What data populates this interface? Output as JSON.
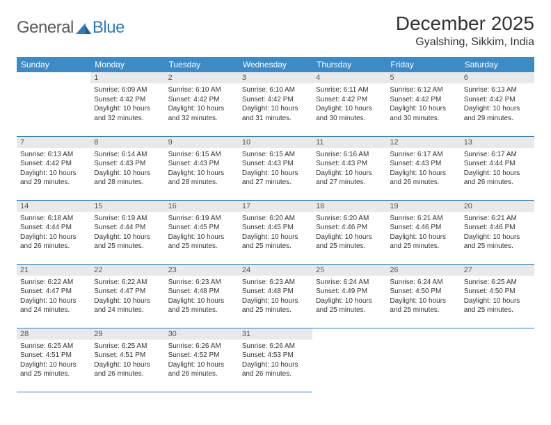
{
  "logo": {
    "word1": "General",
    "word2": "Blue"
  },
  "title": "December 2025",
  "location": "Gyalshing, Sikkim, India",
  "colors": {
    "header_bg": "#3b8bc8",
    "header_text": "#ffffff",
    "daynum_bg": "#e9e9e9",
    "border": "#2b7bbf",
    "logo_accent": "#2b7bbf",
    "body_text": "#333333"
  },
  "weekdays": [
    "Sunday",
    "Monday",
    "Tuesday",
    "Wednesday",
    "Thursday",
    "Friday",
    "Saturday"
  ],
  "weeks": [
    [
      null,
      {
        "n": "1",
        "sr": "Sunrise: 6:09 AM",
        "ss": "Sunset: 4:42 PM",
        "dl": "Daylight: 10 hours and 32 minutes."
      },
      {
        "n": "2",
        "sr": "Sunrise: 6:10 AM",
        "ss": "Sunset: 4:42 PM",
        "dl": "Daylight: 10 hours and 32 minutes."
      },
      {
        "n": "3",
        "sr": "Sunrise: 6:10 AM",
        "ss": "Sunset: 4:42 PM",
        "dl": "Daylight: 10 hours and 31 minutes."
      },
      {
        "n": "4",
        "sr": "Sunrise: 6:11 AM",
        "ss": "Sunset: 4:42 PM",
        "dl": "Daylight: 10 hours and 30 minutes."
      },
      {
        "n": "5",
        "sr": "Sunrise: 6:12 AM",
        "ss": "Sunset: 4:42 PM",
        "dl": "Daylight: 10 hours and 30 minutes."
      },
      {
        "n": "6",
        "sr": "Sunrise: 6:13 AM",
        "ss": "Sunset: 4:42 PM",
        "dl": "Daylight: 10 hours and 29 minutes."
      }
    ],
    [
      {
        "n": "7",
        "sr": "Sunrise: 6:13 AM",
        "ss": "Sunset: 4:42 PM",
        "dl": "Daylight: 10 hours and 29 minutes."
      },
      {
        "n": "8",
        "sr": "Sunrise: 6:14 AM",
        "ss": "Sunset: 4:43 PM",
        "dl": "Daylight: 10 hours and 28 minutes."
      },
      {
        "n": "9",
        "sr": "Sunrise: 6:15 AM",
        "ss": "Sunset: 4:43 PM",
        "dl": "Daylight: 10 hours and 28 minutes."
      },
      {
        "n": "10",
        "sr": "Sunrise: 6:15 AM",
        "ss": "Sunset: 4:43 PM",
        "dl": "Daylight: 10 hours and 27 minutes."
      },
      {
        "n": "11",
        "sr": "Sunrise: 6:16 AM",
        "ss": "Sunset: 4:43 PM",
        "dl": "Daylight: 10 hours and 27 minutes."
      },
      {
        "n": "12",
        "sr": "Sunrise: 6:17 AM",
        "ss": "Sunset: 4:43 PM",
        "dl": "Daylight: 10 hours and 26 minutes."
      },
      {
        "n": "13",
        "sr": "Sunrise: 6:17 AM",
        "ss": "Sunset: 4:44 PM",
        "dl": "Daylight: 10 hours and 26 minutes."
      }
    ],
    [
      {
        "n": "14",
        "sr": "Sunrise: 6:18 AM",
        "ss": "Sunset: 4:44 PM",
        "dl": "Daylight: 10 hours and 26 minutes."
      },
      {
        "n": "15",
        "sr": "Sunrise: 6:19 AM",
        "ss": "Sunset: 4:44 PM",
        "dl": "Daylight: 10 hours and 25 minutes."
      },
      {
        "n": "16",
        "sr": "Sunrise: 6:19 AM",
        "ss": "Sunset: 4:45 PM",
        "dl": "Daylight: 10 hours and 25 minutes."
      },
      {
        "n": "17",
        "sr": "Sunrise: 6:20 AM",
        "ss": "Sunset: 4:45 PM",
        "dl": "Daylight: 10 hours and 25 minutes."
      },
      {
        "n": "18",
        "sr": "Sunrise: 6:20 AM",
        "ss": "Sunset: 4:46 PM",
        "dl": "Daylight: 10 hours and 25 minutes."
      },
      {
        "n": "19",
        "sr": "Sunrise: 6:21 AM",
        "ss": "Sunset: 4:46 PM",
        "dl": "Daylight: 10 hours and 25 minutes."
      },
      {
        "n": "20",
        "sr": "Sunrise: 6:21 AM",
        "ss": "Sunset: 4:46 PM",
        "dl": "Daylight: 10 hours and 25 minutes."
      }
    ],
    [
      {
        "n": "21",
        "sr": "Sunrise: 6:22 AM",
        "ss": "Sunset: 4:47 PM",
        "dl": "Daylight: 10 hours and 24 minutes."
      },
      {
        "n": "22",
        "sr": "Sunrise: 6:22 AM",
        "ss": "Sunset: 4:47 PM",
        "dl": "Daylight: 10 hours and 24 minutes."
      },
      {
        "n": "23",
        "sr": "Sunrise: 6:23 AM",
        "ss": "Sunset: 4:48 PM",
        "dl": "Daylight: 10 hours and 25 minutes."
      },
      {
        "n": "24",
        "sr": "Sunrise: 6:23 AM",
        "ss": "Sunset: 4:48 PM",
        "dl": "Daylight: 10 hours and 25 minutes."
      },
      {
        "n": "25",
        "sr": "Sunrise: 6:24 AM",
        "ss": "Sunset: 4:49 PM",
        "dl": "Daylight: 10 hours and 25 minutes."
      },
      {
        "n": "26",
        "sr": "Sunrise: 6:24 AM",
        "ss": "Sunset: 4:50 PM",
        "dl": "Daylight: 10 hours and 25 minutes."
      },
      {
        "n": "27",
        "sr": "Sunrise: 6:25 AM",
        "ss": "Sunset: 4:50 PM",
        "dl": "Daylight: 10 hours and 25 minutes."
      }
    ],
    [
      {
        "n": "28",
        "sr": "Sunrise: 6:25 AM",
        "ss": "Sunset: 4:51 PM",
        "dl": "Daylight: 10 hours and 25 minutes."
      },
      {
        "n": "29",
        "sr": "Sunrise: 6:25 AM",
        "ss": "Sunset: 4:51 PM",
        "dl": "Daylight: 10 hours and 26 minutes."
      },
      {
        "n": "30",
        "sr": "Sunrise: 6:26 AM",
        "ss": "Sunset: 4:52 PM",
        "dl": "Daylight: 10 hours and 26 minutes."
      },
      {
        "n": "31",
        "sr": "Sunrise: 6:26 AM",
        "ss": "Sunset: 4:53 PM",
        "dl": "Daylight: 10 hours and 26 minutes."
      },
      null,
      null,
      null
    ]
  ]
}
